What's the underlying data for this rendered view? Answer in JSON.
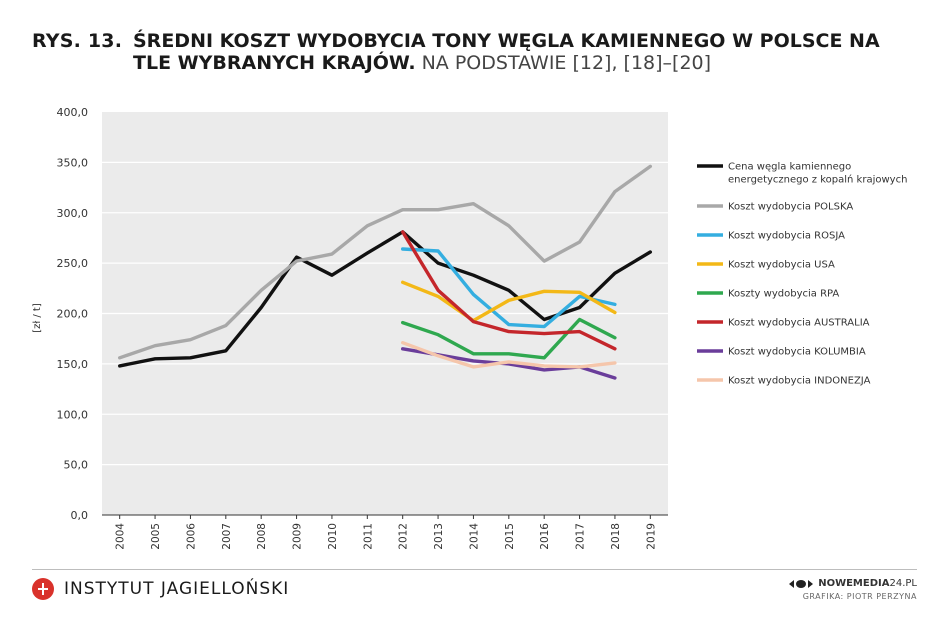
{
  "header": {
    "figure_label": "RYS. 13.",
    "title": "ŚREDNI KOSZT WYDOBYCIA TONY WĘGLA KAMIENNEGO W POLSCE NA TLE WYBRANYCH KRAJÓW.",
    "source_note": "NA PODSTAWIE [12], [18]–[20]"
  },
  "chart_data": {
    "type": "line",
    "ylabel": "[zł / t]",
    "ylim": [
      0,
      400
    ],
    "ytick_labels": [
      "0,0",
      "50,0",
      "100,0",
      "150,0",
      "200,0",
      "250,0",
      "300,0",
      "350,0",
      "400,0"
    ],
    "categories": [
      "2004",
      "2005",
      "2006",
      "2007",
      "2008",
      "2009",
      "2010",
      "2011",
      "2012",
      "2013",
      "2014",
      "2015",
      "2016",
      "2017",
      "2018",
      "2019"
    ],
    "grid": true,
    "legend_position": "right",
    "series": [
      {
        "name": "Cena węgla kamiennego energetycznego z kopalń krajowych",
        "name_lines": [
          "Cena węgla kamiennego",
          "energetycznego z kopalń krajowych"
        ],
        "color": "#111111",
        "values": [
          148,
          155,
          156,
          163,
          206,
          256,
          238,
          260,
          281,
          250,
          238,
          223,
          194,
          206,
          240,
          261
        ]
      },
      {
        "name": "Koszt wydobycia POLSKA",
        "color": "#a8a8a8",
        "values": [
          156,
          168,
          174,
          188,
          223,
          252,
          259,
          287,
          303,
          303,
          309,
          287,
          252,
          271,
          321,
          346
        ]
      },
      {
        "name": "Koszt wydobycia ROSJA",
        "color": "#34aee0",
        "values": [
          null,
          null,
          null,
          null,
          null,
          null,
          null,
          null,
          264,
          262,
          219,
          189,
          187,
          217,
          209,
          null
        ]
      },
      {
        "name": "Koszt wydobycia USA",
        "color": "#f3b817",
        "values": [
          null,
          null,
          null,
          null,
          null,
          null,
          null,
          null,
          231,
          217,
          193,
          213,
          222,
          221,
          201,
          null
        ]
      },
      {
        "name": "Koszty wydobycia RPA",
        "color": "#2fa84f",
        "values": [
          null,
          null,
          null,
          null,
          null,
          null,
          null,
          null,
          191,
          179,
          160,
          160,
          156,
          194,
          176,
          null
        ]
      },
      {
        "name": "Koszt wydobycia AUSTRALIA",
        "color": "#c4262b",
        "values": [
          null,
          null,
          null,
          null,
          null,
          null,
          null,
          null,
          281,
          223,
          192,
          182,
          180,
          182,
          165,
          null
        ]
      },
      {
        "name": "Koszt wydobycia KOLUMBIA",
        "color": "#6a3d9a",
        "values": [
          null,
          null,
          null,
          null,
          null,
          null,
          null,
          null,
          165,
          159,
          153,
          150,
          144,
          147,
          136,
          null
        ]
      },
      {
        "name": "Koszt wydobycia INDONEZJA",
        "color": "#f5c6ab",
        "values": [
          null,
          null,
          null,
          null,
          null,
          null,
          null,
          null,
          171,
          158,
          147,
          152,
          148,
          147,
          151,
          null
        ]
      }
    ]
  },
  "footer": {
    "institute": "INSTYTUT  JAGIELLOŃSKI",
    "site_bold": "NOWEMEDIA",
    "site_rest": "24.PL",
    "credit": "GRAFIKA: PIOTR PERZYNA"
  }
}
